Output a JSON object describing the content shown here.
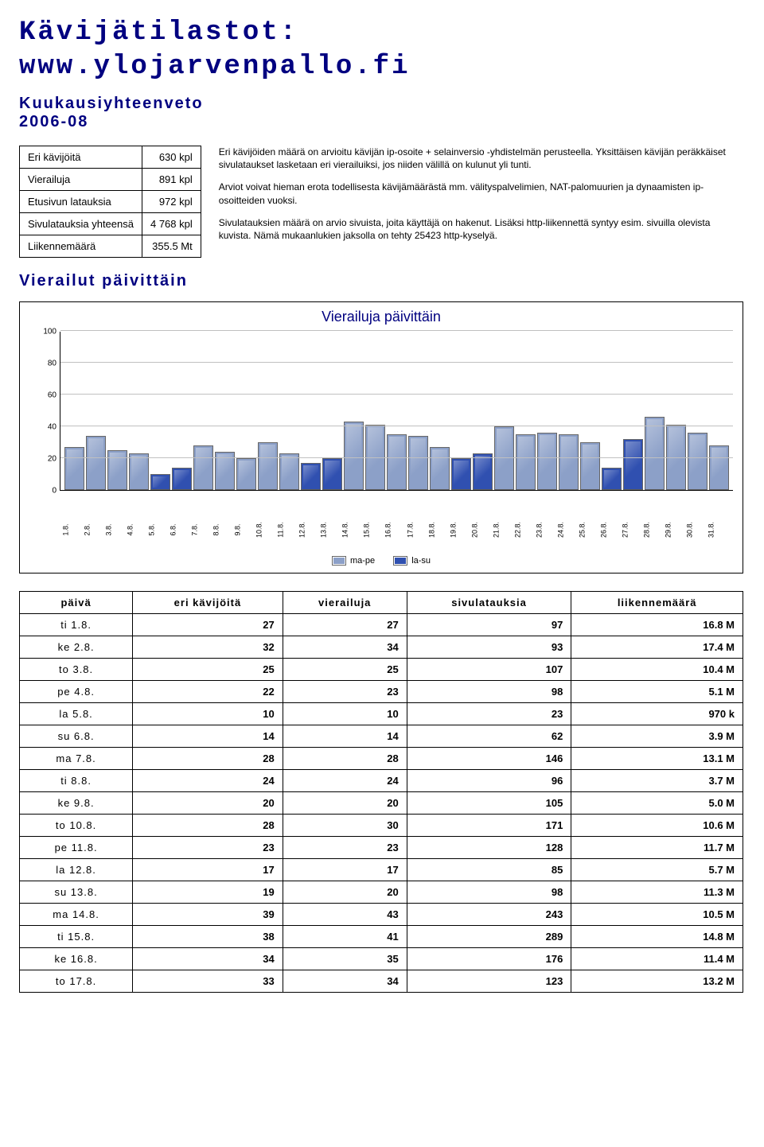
{
  "title_line1": "Kävijätilastot:",
  "title_line2": "www.ylojarvenpallo.fi",
  "subtitle_line1": "Kuukausiyhteenveto",
  "subtitle_line2": "2006-08",
  "summary": [
    {
      "label": "Eri kävijöitä",
      "value": "630 kpl"
    },
    {
      "label": "Vierailuja",
      "value": "891 kpl"
    },
    {
      "label": "Etusivun latauksia",
      "value": "972 kpl"
    },
    {
      "label": "Sivulatauksia yhteensä",
      "value": "4 768 kpl"
    },
    {
      "label": "Liikennemäärä",
      "value": "355.5 Mt"
    }
  ],
  "desc": {
    "p1": "Eri kävijöiden määrä on arvioitu kävijän ip-osoite + selainversio -yhdistelmän perusteella. Yksittäisen kävijän peräkkäiset sivulataukset lasketaan eri vierailuiksi, jos niiden välillä on kulunut yli tunti.",
    "p2": "Arviot voivat hieman erota todellisesta kävijämäärästä mm. välityspalvelimien, NAT-palomuurien ja dynaamisten ip-osoitteiden vuoksi.",
    "p3": "Sivulatauksien määrä on arvio sivuista, joita käyttäjä on hakenut. Lisäksi http-liikennettä syntyy esim. sivuilla olevista kuvista. Nämä mukaanlukien jaksolla on tehty 25423 http-kyselyä."
  },
  "section_daily": "Vierailut päivittäin",
  "chart": {
    "title": "Vierailuja päivittäin",
    "ymax": 100,
    "yticks": [
      0,
      20,
      40,
      60,
      80,
      100
    ],
    "bar_color_weekday": "#8ca0c8",
    "bar_color_weekend": "#3050b0",
    "bar_border": "#666666",
    "grid_color": "#c0c0c0",
    "legend_weekday": "ma-pe",
    "legend_weekend": "la-su",
    "days": [
      {
        "label": "1.8.",
        "value": 27,
        "weekend": false
      },
      {
        "label": "2.8.",
        "value": 34,
        "weekend": false
      },
      {
        "label": "3.8.",
        "value": 25,
        "weekend": false
      },
      {
        "label": "4.8.",
        "value": 23,
        "weekend": false
      },
      {
        "label": "5.8.",
        "value": 10,
        "weekend": true
      },
      {
        "label": "6.8.",
        "value": 14,
        "weekend": true
      },
      {
        "label": "7.8.",
        "value": 28,
        "weekend": false
      },
      {
        "label": "8.8.",
        "value": 24,
        "weekend": false
      },
      {
        "label": "9.8.",
        "value": 20,
        "weekend": false
      },
      {
        "label": "10.8.",
        "value": 30,
        "weekend": false
      },
      {
        "label": "11.8.",
        "value": 23,
        "weekend": false
      },
      {
        "label": "12.8.",
        "value": 17,
        "weekend": true
      },
      {
        "label": "13.8.",
        "value": 20,
        "weekend": true
      },
      {
        "label": "14.8.",
        "value": 43,
        "weekend": false
      },
      {
        "label": "15.8.",
        "value": 41,
        "weekend": false
      },
      {
        "label": "16.8.",
        "value": 35,
        "weekend": false
      },
      {
        "label": "17.8.",
        "value": 34,
        "weekend": false
      },
      {
        "label": "18.8.",
        "value": 27,
        "weekend": false
      },
      {
        "label": "19.8.",
        "value": 20,
        "weekend": true
      },
      {
        "label": "20.8.",
        "value": 23,
        "weekend": true
      },
      {
        "label": "21.8.",
        "value": 40,
        "weekend": false
      },
      {
        "label": "22.8.",
        "value": 35,
        "weekend": false
      },
      {
        "label": "23.8.",
        "value": 36,
        "weekend": false
      },
      {
        "label": "24.8.",
        "value": 35,
        "weekend": false
      },
      {
        "label": "25.8.",
        "value": 30,
        "weekend": false
      },
      {
        "label": "26.8.",
        "value": 14,
        "weekend": true
      },
      {
        "label": "27.8.",
        "value": 32,
        "weekend": true
      },
      {
        "label": "28.8.",
        "value": 46,
        "weekend": false
      },
      {
        "label": "29.8.",
        "value": 41,
        "weekend": false
      },
      {
        "label": "30.8.",
        "value": 36,
        "weekend": false
      },
      {
        "label": "31.8.",
        "value": 28,
        "weekend": false
      }
    ]
  },
  "table": {
    "columns": [
      "päivä",
      "eri kävijöitä",
      "vierailuja",
      "sivulatauksia",
      "liikennemäärä"
    ],
    "rows": [
      {
        "day": "ti 1.8.",
        "c1": "27",
        "c2": "27",
        "c3": "97",
        "c4": "16.8 M"
      },
      {
        "day": "ke 2.8.",
        "c1": "32",
        "c2": "34",
        "c3": "93",
        "c4": "17.4 M"
      },
      {
        "day": "to 3.8.",
        "c1": "25",
        "c2": "25",
        "c3": "107",
        "c4": "10.4 M"
      },
      {
        "day": "pe 4.8.",
        "c1": "22",
        "c2": "23",
        "c3": "98",
        "c4": "5.1 M"
      },
      {
        "day": "la 5.8.",
        "c1": "10",
        "c2": "10",
        "c3": "23",
        "c4": "970 k"
      },
      {
        "day": "su 6.8.",
        "c1": "14",
        "c2": "14",
        "c3": "62",
        "c4": "3.9 M"
      },
      {
        "day": "ma 7.8.",
        "c1": "28",
        "c2": "28",
        "c3": "146",
        "c4": "13.1 M"
      },
      {
        "day": "ti 8.8.",
        "c1": "24",
        "c2": "24",
        "c3": "96",
        "c4": "3.7 M"
      },
      {
        "day": "ke 9.8.",
        "c1": "20",
        "c2": "20",
        "c3": "105",
        "c4": "5.0 M"
      },
      {
        "day": "to 10.8.",
        "c1": "28",
        "c2": "30",
        "c3": "171",
        "c4": "10.6 M"
      },
      {
        "day": "pe 11.8.",
        "c1": "23",
        "c2": "23",
        "c3": "128",
        "c4": "11.7 M"
      },
      {
        "day": "la 12.8.",
        "c1": "17",
        "c2": "17",
        "c3": "85",
        "c4": "5.7 M"
      },
      {
        "day": "su 13.8.",
        "c1": "19",
        "c2": "20",
        "c3": "98",
        "c4": "11.3 M"
      },
      {
        "day": "ma 14.8.",
        "c1": "39",
        "c2": "43",
        "c3": "243",
        "c4": "10.5 M"
      },
      {
        "day": "ti 15.8.",
        "c1": "38",
        "c2": "41",
        "c3": "289",
        "c4": "14.8 M"
      },
      {
        "day": "ke 16.8.",
        "c1": "34",
        "c2": "35",
        "c3": "176",
        "c4": "11.4 M"
      },
      {
        "day": "to 17.8.",
        "c1": "33",
        "c2": "34",
        "c3": "123",
        "c4": "13.2 M"
      }
    ]
  }
}
